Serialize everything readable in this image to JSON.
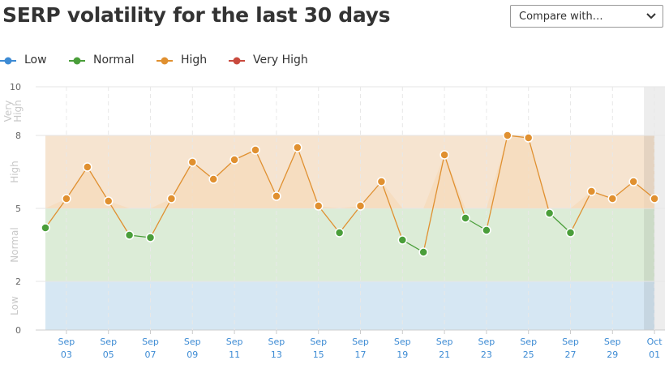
{
  "header": {
    "title": "SERP volatility for the last 30 days"
  },
  "compare": {
    "label": "Compare with…",
    "icon": "chevron-down-icon"
  },
  "legend": [
    {
      "label": "Low",
      "color": "#3d8bd4"
    },
    {
      "label": "Normal",
      "color": "#4a9e3a"
    },
    {
      "label": "High",
      "color": "#e09030"
    },
    {
      "label": "Very High",
      "color": "#c94a3e"
    }
  ],
  "chart_data": {
    "type": "line",
    "ylim": [
      0,
      10
    ],
    "yticks": [
      0,
      2,
      5,
      8,
      10
    ],
    "bands": [
      {
        "label": "Low",
        "from": 0,
        "to": 2,
        "color": "#d6e7f3"
      },
      {
        "label": "Normal",
        "from": 2,
        "to": 5,
        "color": "#dcecd7"
      },
      {
        "label": "High",
        "from": 5,
        "to": 8,
        "color": "#f6e4d0"
      },
      {
        "label": "Very High",
        "from": 8,
        "to": 10,
        "color": "#ffffff"
      }
    ],
    "band_labels": [
      {
        "lines": [
          "Low"
        ],
        "mid": 1
      },
      {
        "lines": [
          "Normal"
        ],
        "mid": 3.5
      },
      {
        "lines": [
          "High"
        ],
        "mid": 6.5
      },
      {
        "lines": [
          "Very",
          "High"
        ],
        "mid": 9
      }
    ],
    "x": [
      "Sep 02",
      "Sep 03",
      "Sep 04",
      "Sep 05",
      "Sep 06",
      "Sep 07",
      "Sep 08",
      "Sep 09",
      "Sep 10",
      "Sep 11",
      "Sep 12",
      "Sep 13",
      "Sep 14",
      "Sep 15",
      "Sep 16",
      "Sep 17",
      "Sep 18",
      "Sep 19",
      "Sep 20",
      "Sep 21",
      "Sep 22",
      "Sep 23",
      "Sep 24",
      "Sep 25",
      "Sep 26",
      "Sep 27",
      "Sep 28",
      "Sep 29",
      "Sep 30",
      "Oct 01"
    ],
    "values": [
      4.2,
      5.4,
      6.7,
      5.3,
      3.9,
      3.8,
      5.4,
      6.9,
      6.2,
      7.0,
      7.4,
      5.5,
      7.5,
      5.1,
      4.0,
      5.1,
      6.1,
      3.7,
      3.2,
      7.2,
      4.6,
      4.1,
      8.0,
      7.9,
      4.8,
      4.0,
      5.7,
      5.4,
      6.1,
      5.4
    ],
    "xtick_labels": [
      {
        "index": 1,
        "month": "Sep",
        "day": "03"
      },
      {
        "index": 3,
        "month": "Sep",
        "day": "05"
      },
      {
        "index": 5,
        "month": "Sep",
        "day": "07"
      },
      {
        "index": 7,
        "month": "Sep",
        "day": "09"
      },
      {
        "index": 9,
        "month": "Sep",
        "day": "11"
      },
      {
        "index": 11,
        "month": "Sep",
        "day": "13"
      },
      {
        "index": 13,
        "month": "Sep",
        "day": "15"
      },
      {
        "index": 15,
        "month": "Sep",
        "day": "17"
      },
      {
        "index": 17,
        "month": "Sep",
        "day": "19"
      },
      {
        "index": 19,
        "month": "Sep",
        "day": "21"
      },
      {
        "index": 21,
        "month": "Sep",
        "day": "23"
      },
      {
        "index": 23,
        "month": "Sep",
        "day": "25"
      },
      {
        "index": 25,
        "month": "Sep",
        "day": "27"
      },
      {
        "index": 27,
        "month": "Sep",
        "day": "29"
      },
      {
        "index": 29,
        "month": "Oct",
        "day": "01"
      }
    ],
    "highlight_index": 29,
    "grid": true,
    "legend_position": "top-left",
    "colors": {
      "normal": "#4a9e3a",
      "high": "#e09030",
      "tick": "#3d8bd4"
    }
  }
}
